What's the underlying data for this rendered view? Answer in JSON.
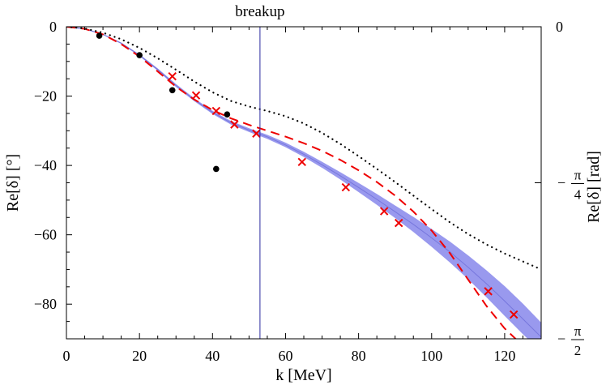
{
  "chart_data": {
    "type": "line",
    "title": "",
    "annotation": "breakup",
    "breakup_k": 53,
    "xlabel": "k [MeV]",
    "ylabel": "Re[δ] [°]",
    "ylabel_right": "Re[δ] [rad]",
    "xlim": [
      0,
      130
    ],
    "ylim": [
      -90,
      0
    ],
    "x_ticks": [
      0,
      20,
      40,
      60,
      80,
      100,
      120
    ],
    "y_ticks": [
      0,
      -20,
      -40,
      -60,
      -80
    ],
    "x_tick_labels": [
      "0",
      "20",
      "40",
      "60",
      "80",
      "100",
      "120"
    ],
    "y_tick_labels": [
      "0",
      "−20",
      "−40",
      "−60",
      "−80"
    ],
    "right_ticks": [
      {
        "value": 0,
        "label": "0"
      },
      {
        "value": -45,
        "label": "−",
        "frac_num": "π",
        "frac_den": "4"
      },
      {
        "value": -90,
        "label": "−",
        "frac_num": "π",
        "frac_den": "2"
      }
    ],
    "colors": {
      "band": "#9999ee",
      "band_center": "#7777dd",
      "dashed": "#ee0000",
      "dotted": "#000000",
      "points": "#000000",
      "crosses": "#ee0000",
      "breakup_line": "#2a2aa0"
    },
    "series": [
      {
        "name": "band",
        "style": "band",
        "x": [
          0,
          5,
          10,
          15,
          20,
          25,
          30,
          35,
          40,
          45,
          50,
          55,
          60,
          65,
          70,
          75,
          80,
          85,
          90,
          95,
          100,
          105,
          110,
          115,
          120,
          125,
          130
        ],
        "lower": [
          0,
          -0.6,
          -2.2,
          -4.8,
          -8.3,
          -12.5,
          -17.2,
          -21.3,
          -25.0,
          -28.0,
          -30.2,
          -32.2,
          -34.6,
          -37.4,
          -40.5,
          -43.9,
          -47.5,
          -51.2,
          -55.0,
          -59.0,
          -63.3,
          -67.8,
          -72.6,
          -77.8,
          -83.2,
          -88.5,
          -93.5
        ],
        "upper": [
          0,
          -0.6,
          -2.2,
          -4.7,
          -8.1,
          -12.2,
          -16.7,
          -20.8,
          -24.4,
          -27.3,
          -29.4,
          -31.3,
          -33.6,
          -36.2,
          -39.1,
          -42.1,
          -45.2,
          -48.4,
          -51.7,
          -55.0,
          -58.5,
          -62.1,
          -66.1,
          -70.4,
          -75.0,
          -80.1,
          -85.5
        ]
      },
      {
        "name": "dashed",
        "style": "dashed",
        "x": [
          0,
          5,
          10,
          15,
          20,
          25,
          30,
          35,
          40,
          45,
          50,
          55,
          60,
          65,
          70,
          75,
          80,
          85,
          90,
          95,
          100,
          105,
          110,
          115,
          120,
          125
        ],
        "y": [
          0,
          -0.6,
          -2.2,
          -5.0,
          -8.6,
          -12.9,
          -17.3,
          -21.0,
          -24.0,
          -26.4,
          -28.3,
          -30.0,
          -31.7,
          -33.6,
          -35.8,
          -38.4,
          -41.4,
          -44.8,
          -48.7,
          -53.3,
          -58.8,
          -65.3,
          -72.9,
          -80.5,
          -87.0,
          -92.0
        ]
      },
      {
        "name": "dotted",
        "style": "dotted",
        "x": [
          0,
          5,
          10,
          15,
          20,
          25,
          30,
          35,
          40,
          45,
          50,
          55,
          60,
          65,
          70,
          75,
          80,
          85,
          90,
          95,
          100,
          105,
          110,
          115,
          120,
          125,
          130
        ],
        "y": [
          0,
          -0.5,
          -1.7,
          -3.6,
          -6.1,
          -9.1,
          -12.4,
          -15.8,
          -18.9,
          -21.4,
          -23.0,
          -24.3,
          -25.8,
          -27.9,
          -30.6,
          -33.8,
          -37.3,
          -41.0,
          -44.8,
          -48.7,
          -52.6,
          -56.4,
          -59.8,
          -62.8,
          -65.4,
          -67.7,
          -70.0
        ]
      },
      {
        "name": "dots",
        "style": "points",
        "points": [
          [
            9,
            -2.6
          ],
          [
            20,
            -8.2
          ],
          [
            29,
            -18.3
          ],
          [
            44,
            -25.3
          ],
          [
            41,
            -41.0
          ]
        ]
      },
      {
        "name": "crosses",
        "style": "crosses",
        "points": [
          [
            29,
            -14.3
          ],
          [
            35.5,
            -19.8
          ],
          [
            41,
            -24.3
          ],
          [
            46,
            -28.2
          ],
          [
            52,
            -30.8
          ],
          [
            64.5,
            -39.0
          ],
          [
            76.5,
            -46.3
          ],
          [
            87,
            -53.2
          ],
          [
            91,
            -56.6
          ],
          [
            115.5,
            -76.3
          ],
          [
            122.5,
            -83.0
          ]
        ]
      }
    ]
  }
}
